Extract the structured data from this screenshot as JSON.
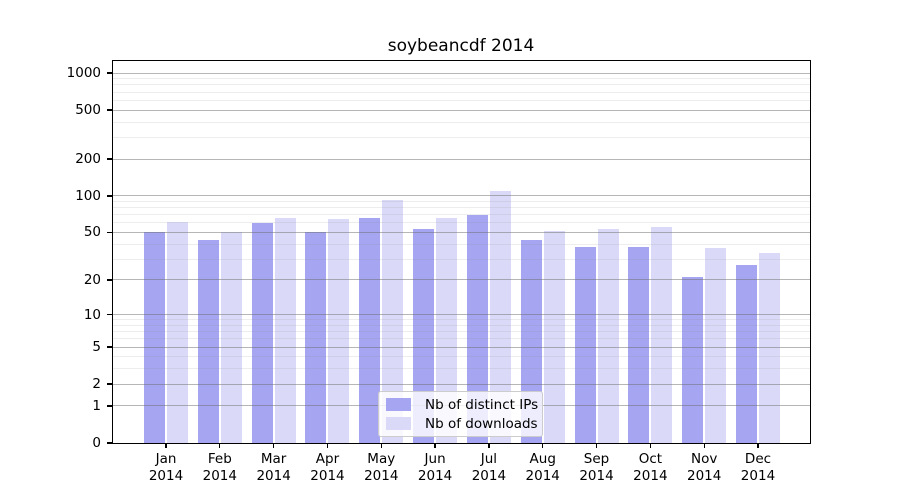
{
  "chart_data": {
    "type": "bar",
    "title": "soybeancdf 2014",
    "categories": [
      "Jan",
      "Feb",
      "Mar",
      "Apr",
      "May",
      "Jun",
      "Jul",
      "Aug",
      "Sep",
      "Oct",
      "Nov",
      "Dec"
    ],
    "category_year": "2014",
    "series": [
      {
        "name": "Nb of distinct IPs",
        "color": "#a5a5f2",
        "values": [
          50,
          43,
          60,
          50,
          66,
          53,
          69,
          43,
          38,
          38,
          21,
          27
        ]
      },
      {
        "name": "Nb of downloads",
        "color": "#dadaf8",
        "values": [
          61,
          50,
          66,
          64,
          93,
          66,
          110,
          51,
          53,
          56,
          37,
          34
        ]
      }
    ],
    "y_scale": "log1p",
    "y_ticks": [
      0,
      1,
      2,
      5,
      10,
      20,
      50,
      100,
      200,
      500,
      1000
    ],
    "y_minor_ticks": [
      3,
      4,
      6,
      7,
      8,
      9,
      30,
      40,
      60,
      70,
      80,
      90,
      300,
      400,
      600,
      700,
      800,
      900
    ],
    "ylim": [
      0,
      1252
    ],
    "xlabel": "",
    "ylabel": "",
    "grid": true,
    "legend_position": "lower center",
    "colors": {
      "bar_distinct_ips": "#a5a5f2",
      "bar_downloads": "#dadaf8",
      "axis": "#000000",
      "major_grid": "#b3b3b3",
      "minor_grid": "#e9e9e9",
      "background": "#ffffff"
    }
  }
}
